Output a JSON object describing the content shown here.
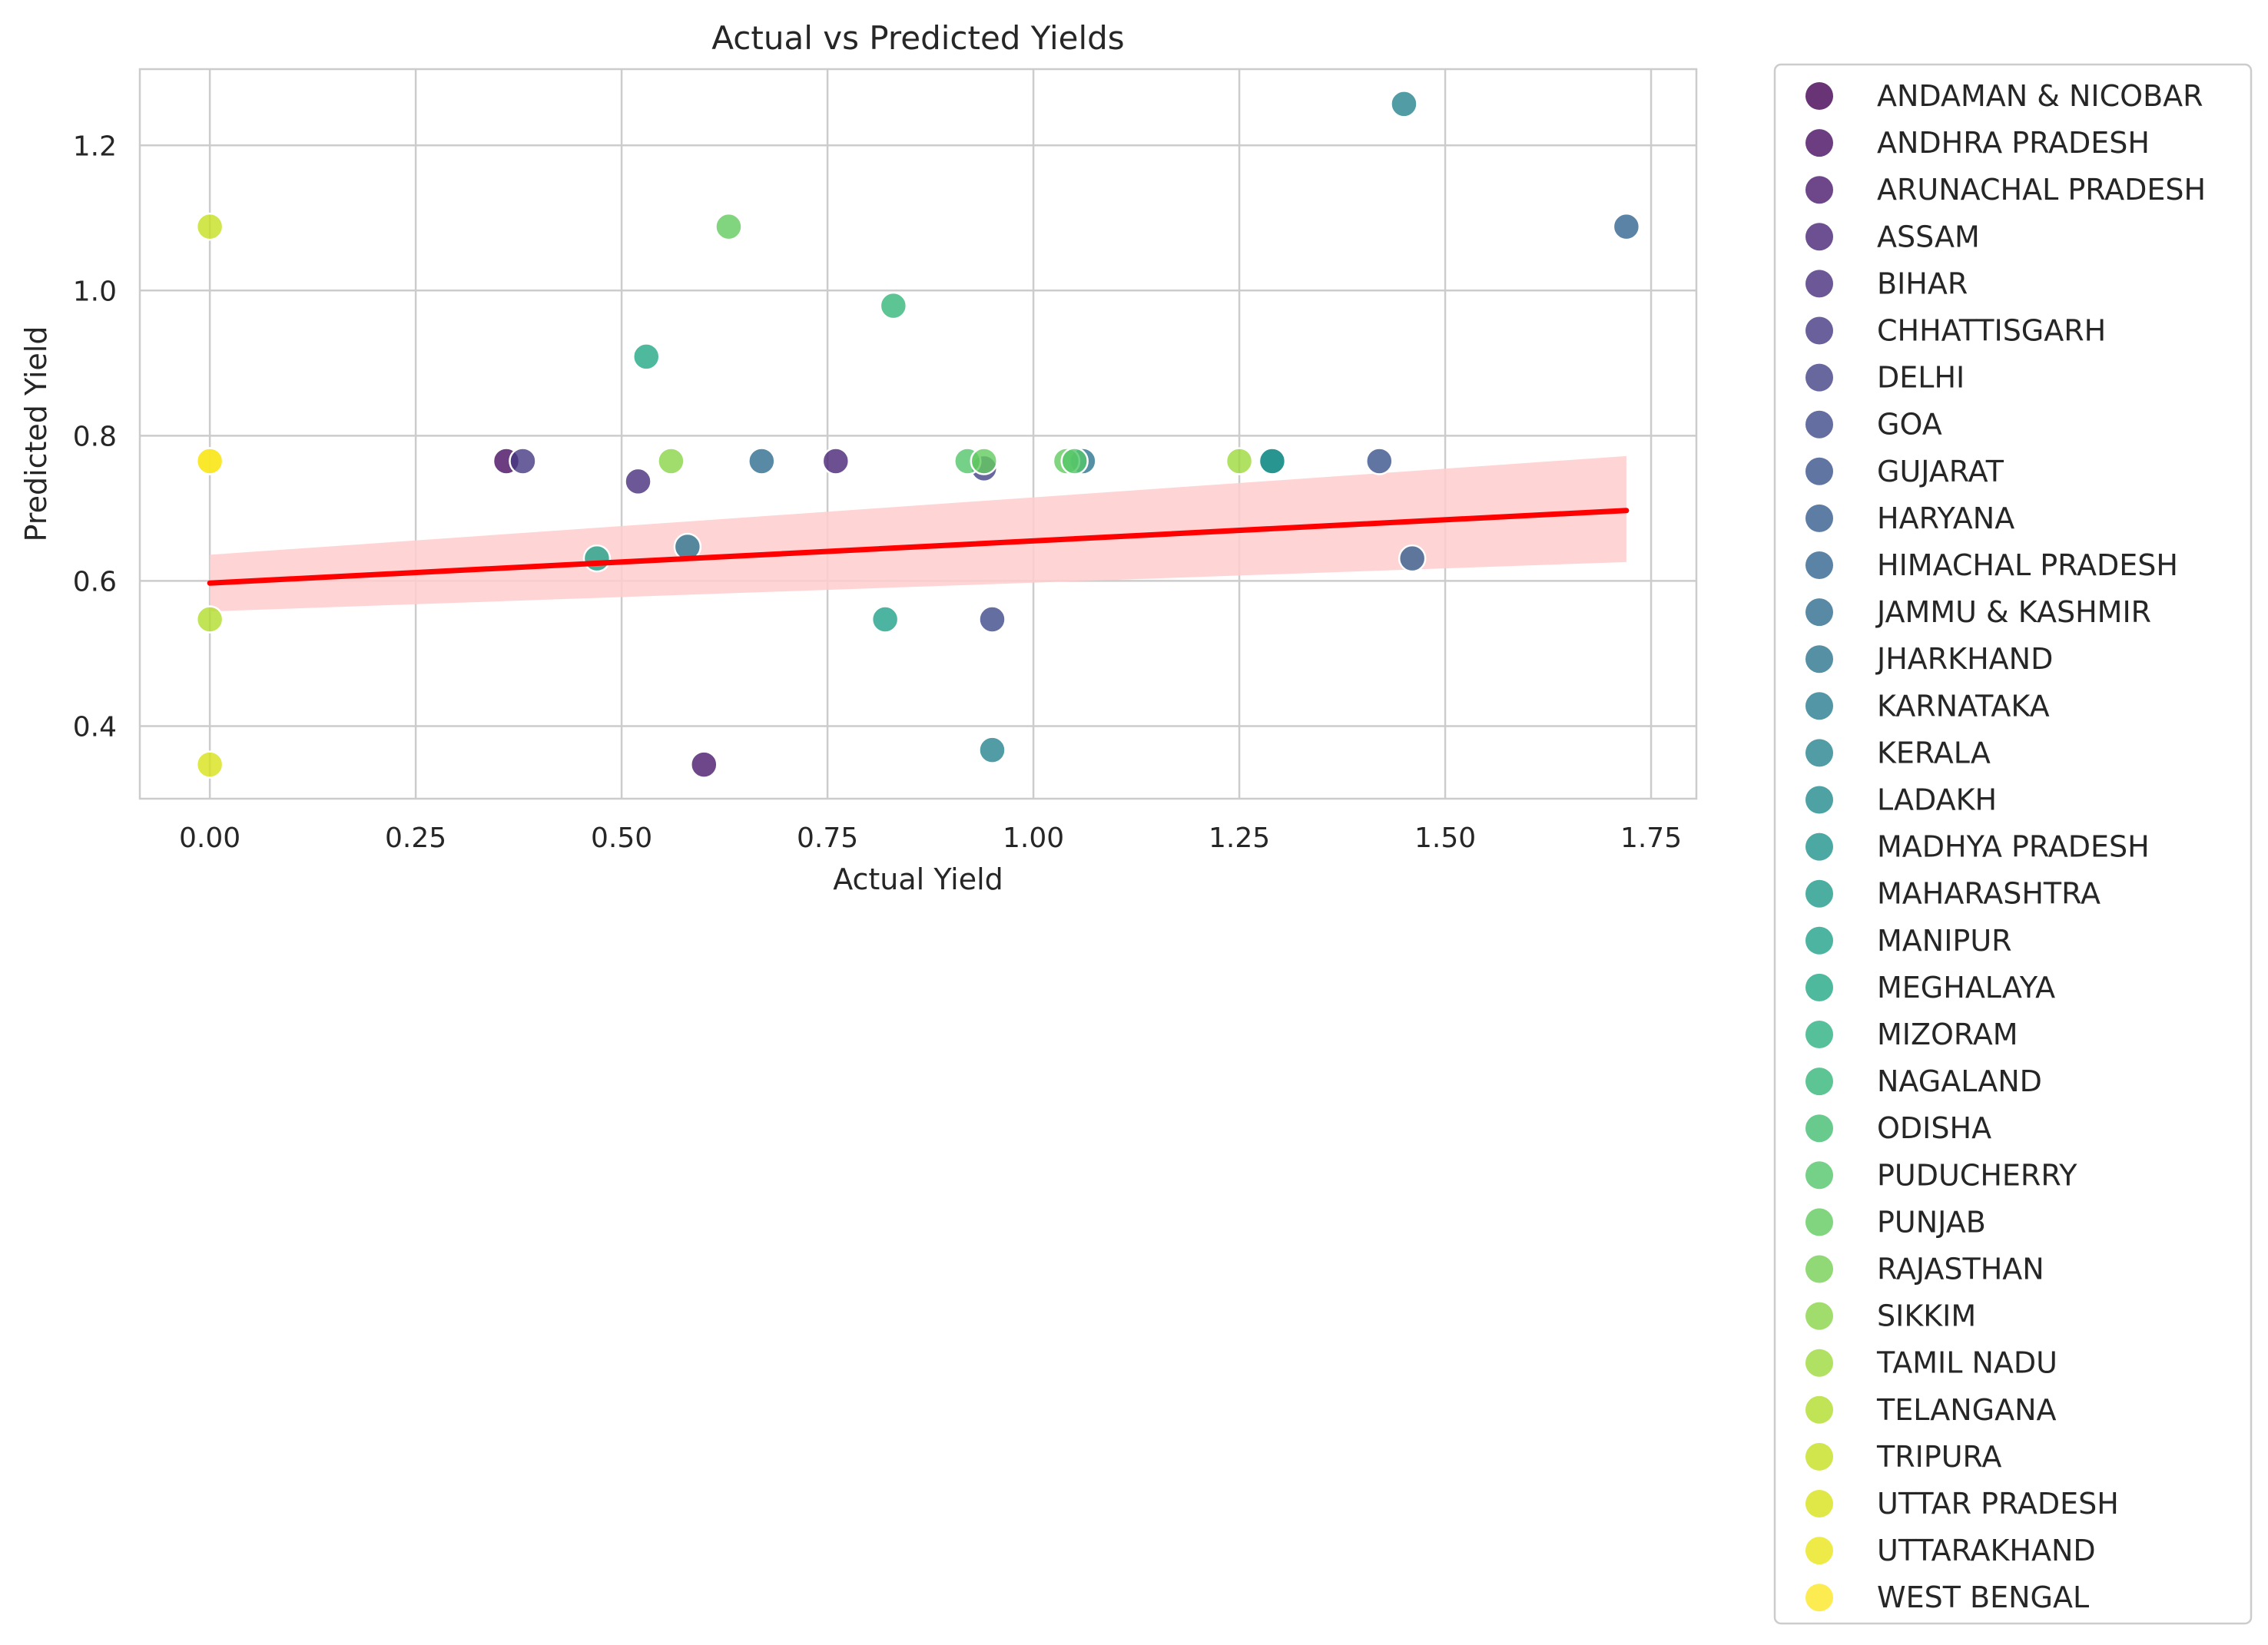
{
  "chart_data": {
    "type": "scatter",
    "title": "Actual vs Predicted Yields",
    "xlabel": "Actual Yield",
    "ylabel": "Predicted Yield",
    "xlim": [
      -0.085,
      1.805
    ],
    "ylim": [
      0.3,
      1.305
    ],
    "xticks": [
      0.0,
      0.25,
      0.5,
      0.75,
      1.0,
      1.25,
      1.5,
      1.75
    ],
    "xtick_labels": [
      "0.00",
      "0.25",
      "0.50",
      "0.75",
      "1.00",
      "1.25",
      "1.50",
      "1.75"
    ],
    "yticks": [
      0.4,
      0.6,
      0.8,
      1.0,
      1.2
    ],
    "ytick_labels": [
      "0.4",
      "0.6",
      "0.8",
      "1.0",
      "1.2"
    ],
    "grid": true,
    "legend_placement": "outside-right",
    "regression": {
      "line": [
        [
          0.0,
          0.597
        ],
        [
          1.72,
          0.697
        ]
      ],
      "ci_upper": [
        [
          0.0,
          0.636
        ],
        [
          1.72,
          0.772
        ]
      ],
      "ci_lower": [
        [
          0.0,
          0.558
        ],
        [
          1.72,
          0.626
        ]
      ],
      "line_color": "#ff0000",
      "band_color": "#ffcccc"
    },
    "categories": [
      {
        "name": "ANDAMAN & NICOBAR",
        "color": "#440154"
      },
      {
        "name": "ANDHRA PRADESH",
        "color": "#470d60"
      },
      {
        "name": "ARUNACHAL PRADESH",
        "color": "#48196b"
      },
      {
        "name": "ASSAM",
        "color": "#482475"
      },
      {
        "name": "BIHAR",
        "color": "#472e7c"
      },
      {
        "name": "CHHATTISGARH",
        "color": "#453882"
      },
      {
        "name": "DELHI",
        "color": "#424186"
      },
      {
        "name": "GOA",
        "color": "#3e4a89"
      },
      {
        "name": "GUJARAT",
        "color": "#3a538b"
      },
      {
        "name": "HARYANA",
        "color": "#365c8d"
      },
      {
        "name": "HIMACHAL PRADESH",
        "color": "#32648e"
      },
      {
        "name": "JAMMU & KASHMIR",
        "color": "#2e6d8e"
      },
      {
        "name": "JHARKHAND",
        "color": "#2b748e"
      },
      {
        "name": "KARNATAKA",
        "color": "#287c8e"
      },
      {
        "name": "KERALA",
        "color": "#25838e"
      },
      {
        "name": "LADAKH",
        "color": "#228b8d"
      },
      {
        "name": "MADHYA PRADESH",
        "color": "#1f928c"
      },
      {
        "name": "MAHARASHTRA",
        "color": "#1e9a8a"
      },
      {
        "name": "MANIPUR",
        "color": "#1fa188"
      },
      {
        "name": "MEGHALAYA",
        "color": "#22a884"
      },
      {
        "name": "MIZORAM",
        "color": "#2ab07f"
      },
      {
        "name": "NAGALAND",
        "color": "#35b779"
      },
      {
        "name": "ODISHA",
        "color": "#42be71"
      },
      {
        "name": "PUDUCHERRY",
        "color": "#52c569"
      },
      {
        "name": "PUNJAB",
        "color": "#63cb5f"
      },
      {
        "name": "RAJASTHAN",
        "color": "#75d054"
      },
      {
        "name": "SIKKIM",
        "color": "#89d548"
      },
      {
        "name": "TAMIL NADU",
        "color": "#9dd93b"
      },
      {
        "name": "TELANGANA",
        "color": "#b2dd2d"
      },
      {
        "name": "TRIPURA",
        "color": "#c5e021"
      },
      {
        "name": "UTTAR PRADESH",
        "color": "#d8e219"
      },
      {
        "name": "UTTARAKHAND",
        "color": "#eae51a"
      },
      {
        "name": "WEST BENGAL",
        "color": "#fde725"
      }
    ],
    "points": [
      {
        "x": 0.36,
        "y": 0.765,
        "c": 1
      },
      {
        "x": 0.6,
        "y": 0.347,
        "c": 2
      },
      {
        "x": 0.76,
        "y": 0.765,
        "c": 3
      },
      {
        "x": 0.38,
        "y": 0.765,
        "c": 5
      },
      {
        "x": 0.52,
        "y": 0.737,
        "c": 4
      },
      {
        "x": 0.94,
        "y": 0.755,
        "c": 6
      },
      {
        "x": 0.95,
        "y": 0.547,
        "c": 7
      },
      {
        "x": 1.42,
        "y": 0.765,
        "c": 8
      },
      {
        "x": 1.46,
        "y": 0.631,
        "c": 9
      },
      {
        "x": 1.72,
        "y": 1.088,
        "c": 10
      },
      {
        "x": 0.67,
        "y": 0.765,
        "c": 11
      },
      {
        "x": 0.58,
        "y": 0.647,
        "c": 12
      },
      {
        "x": 1.06,
        "y": 0.765,
        "c": 12
      },
      {
        "x": 1.45,
        "y": 1.257,
        "c": 14
      },
      {
        "x": 0.95,
        "y": 0.367,
        "c": 14
      },
      {
        "x": 1.29,
        "y": 0.765,
        "c": 15
      },
      {
        "x": 1.29,
        "y": 0.765,
        "c": 16
      },
      {
        "x": 0.47,
        "y": 0.631,
        "c": 18
      },
      {
        "x": 0.82,
        "y": 0.547,
        "c": 18
      },
      {
        "x": 0.53,
        "y": 0.909,
        "c": 19
      },
      {
        "x": 0.83,
        "y": 0.979,
        "c": 21
      },
      {
        "x": 0.92,
        "y": 0.765,
        "c": 23
      },
      {
        "x": 0.63,
        "y": 1.088,
        "c": 24
      },
      {
        "x": 0.94,
        "y": 0.765,
        "c": 24
      },
      {
        "x": 1.04,
        "y": 0.765,
        "c": 24
      },
      {
        "x": 1.05,
        "y": 0.765,
        "c": 23
      },
      {
        "x": 0.56,
        "y": 0.765,
        "c": 26
      },
      {
        "x": 1.25,
        "y": 0.765,
        "c": 27
      },
      {
        "x": 0.0,
        "y": 0.547,
        "c": 28
      },
      {
        "x": 0.0,
        "y": 1.088,
        "c": 29
      },
      {
        "x": 0.0,
        "y": 0.347,
        "c": 30
      },
      {
        "x": 0.0,
        "y": 0.765,
        "c": 31
      },
      {
        "x": 0.0,
        "y": 0.765,
        "c": 32
      }
    ]
  }
}
